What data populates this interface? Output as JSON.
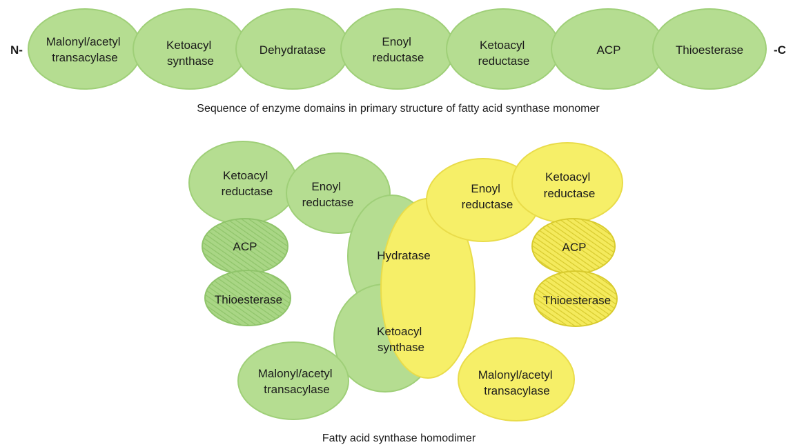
{
  "colors": {
    "green_fill": "#b5dd91",
    "green_stroke": "#9fcf78",
    "green_hatch": "#8fc46a",
    "yellow_fill": "#f6ef68",
    "yellow_stroke": "#e9dc4a",
    "yellow_hatch": "#d8cb2e"
  },
  "monomer": {
    "n_terminus": "N-",
    "c_terminus": "-C",
    "caption": "Sequence of enzyme domains in primary structure of fatty acid synthase monomer",
    "domains": [
      {
        "lines": [
          "Malonyl/acetyl",
          "transacylase"
        ]
      },
      {
        "lines": [
          "Ketoacyl",
          "synthase"
        ]
      },
      {
        "lines": [
          "Dehydratase"
        ]
      },
      {
        "lines": [
          "Enoyl",
          "reductase"
        ]
      },
      {
        "lines": [
          "Ketoacyl",
          "reductase"
        ]
      },
      {
        "lines": [
          "ACP"
        ]
      },
      {
        "lines": [
          "Thioesterase"
        ]
      }
    ]
  },
  "homodimer": {
    "caption": "Fatty acid synthase homodimer",
    "green_subunit": {
      "ketoacyl_reductase": [
        "Ketoacyl",
        "reductase"
      ],
      "enoyl_reductase": [
        "Enoyl",
        "reductase"
      ],
      "hydratase": [
        "Hydratase"
      ],
      "ketoacyl_synthase": [
        "Ketoacyl",
        "synthase"
      ],
      "malonyl_acetyl_transacylase": [
        "Malonyl/acetyl",
        "transacylase"
      ],
      "acp": [
        "ACP"
      ],
      "thioesterase": [
        "Thioesterase"
      ]
    },
    "yellow_subunit": {
      "ketoacyl_reductase": [
        "Ketoacyl",
        "reductase"
      ],
      "enoyl_reductase": [
        "Enoyl",
        "reductase"
      ],
      "malonyl_acetyl_transacylase": [
        "Malonyl/acetyl",
        "transacylase"
      ],
      "acp": [
        "ACP"
      ],
      "thioesterase": [
        "Thioesterase"
      ]
    }
  }
}
